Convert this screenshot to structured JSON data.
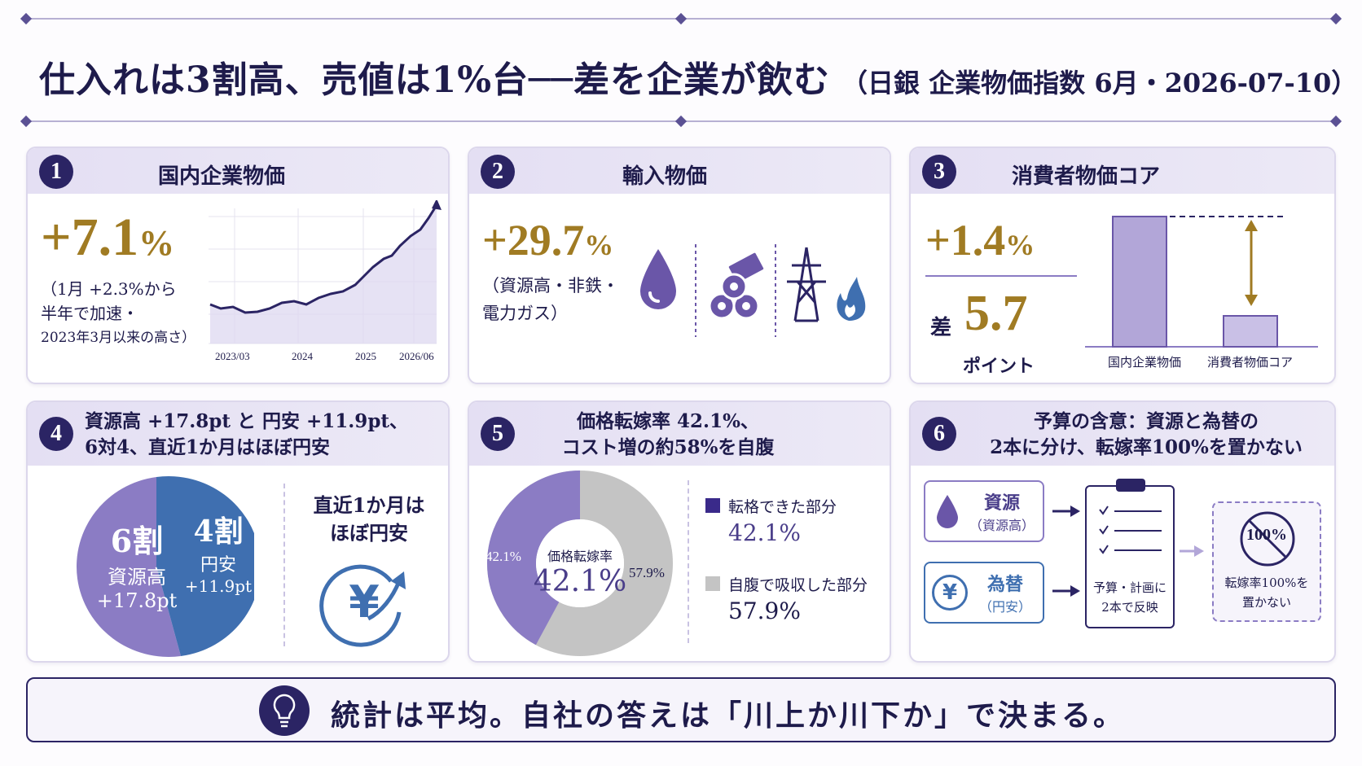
{
  "header": {
    "main": "仕入れは3割高、売値は1%台──差を企業が飲む",
    "sub": "（日銀 企業物価指数 6月・2026-07-10）"
  },
  "cards": [
    {
      "num": "1",
      "title": "国内企業物価",
      "value": "+7.1",
      "unit": "%",
      "note_lines": [
        "（1月 +2.3%から",
        "半年で加速・",
        "2023年3月以来の高さ）"
      ],
      "x_labels": [
        "2023/03",
        "2024",
        "2025",
        "2026/06"
      ]
    },
    {
      "num": "2",
      "title": "輸入物価",
      "value": "+29.7",
      "unit": "%",
      "note_lines": [
        "（資源高・非鉄・",
        "電力ガス）"
      ],
      "icons": [
        "oil-drop-icon",
        "metal-pipes-icon",
        "power-tower-icon",
        "gas-flame-icon"
      ]
    },
    {
      "num": "3",
      "title": "消費者物価コア",
      "value": "+1.4",
      "unit": "%",
      "gap_label": "差",
      "gap_value": "5.7",
      "gap_unit": "ポイント",
      "bar_labels": [
        "国内企業物価",
        "消費者物価コア"
      ]
    },
    {
      "num": "4",
      "title_lines": [
        "資源高 +17.8pt と 円安 +11.9pt、",
        "6対4、直近1か月はほぼ円安"
      ],
      "pie_left": {
        "big": "6割",
        "label": "資源高",
        "value": "+17.8pt",
        "share": 0.6
      },
      "pie_right": {
        "big": "4割",
        "label": "円安",
        "value": "+11.9pt",
        "share": 0.4
      },
      "side_lines": [
        "直近1か月は",
        "ほぼ円安"
      ],
      "yen_symbol": "¥"
    },
    {
      "num": "5",
      "title_lines": [
        "価格転嫁率 42.1%、",
        "コスト増の約58%を自腹"
      ],
      "donut_center_label": "価格転嫁率",
      "donut_center_value": "42.1%",
      "slice_passed_label": "42.1%",
      "slice_absorbed_label": "57.9%",
      "legend": [
        {
          "label": "転格できた部分",
          "value": "42.1%",
          "share": 0.421,
          "color": "#3a2a8a"
        },
        {
          "label": "自腹で吸収した部分",
          "value": "57.9%",
          "share": 0.579,
          "color": "#c4c4c4"
        }
      ]
    },
    {
      "num": "6",
      "title_lines": [
        "予算の含意：資源と為替の",
        "2本に分け、転嫁率100%を置かない"
      ],
      "box_resource": {
        "title": "資源",
        "sub": "（資源高）"
      },
      "box_fx": {
        "title": "為替",
        "sub": "（円安）",
        "symbol": "¥"
      },
      "clipboard_lines": [
        "予算・計画に",
        "2本で反映"
      ],
      "no100_label": "100%",
      "no100_lines": [
        "転嫁率100%を",
        "置かない"
      ]
    }
  ],
  "footer": {
    "message": "統計は平均。自社の答えは「川上か川下か」で決まる。"
  },
  "colors": {
    "navy": "#2b2464",
    "gold": "#a07b23",
    "lavender": "#8b7cc4",
    "blue": "#3f6fb0",
    "gray": "#c4c4c4"
  }
}
